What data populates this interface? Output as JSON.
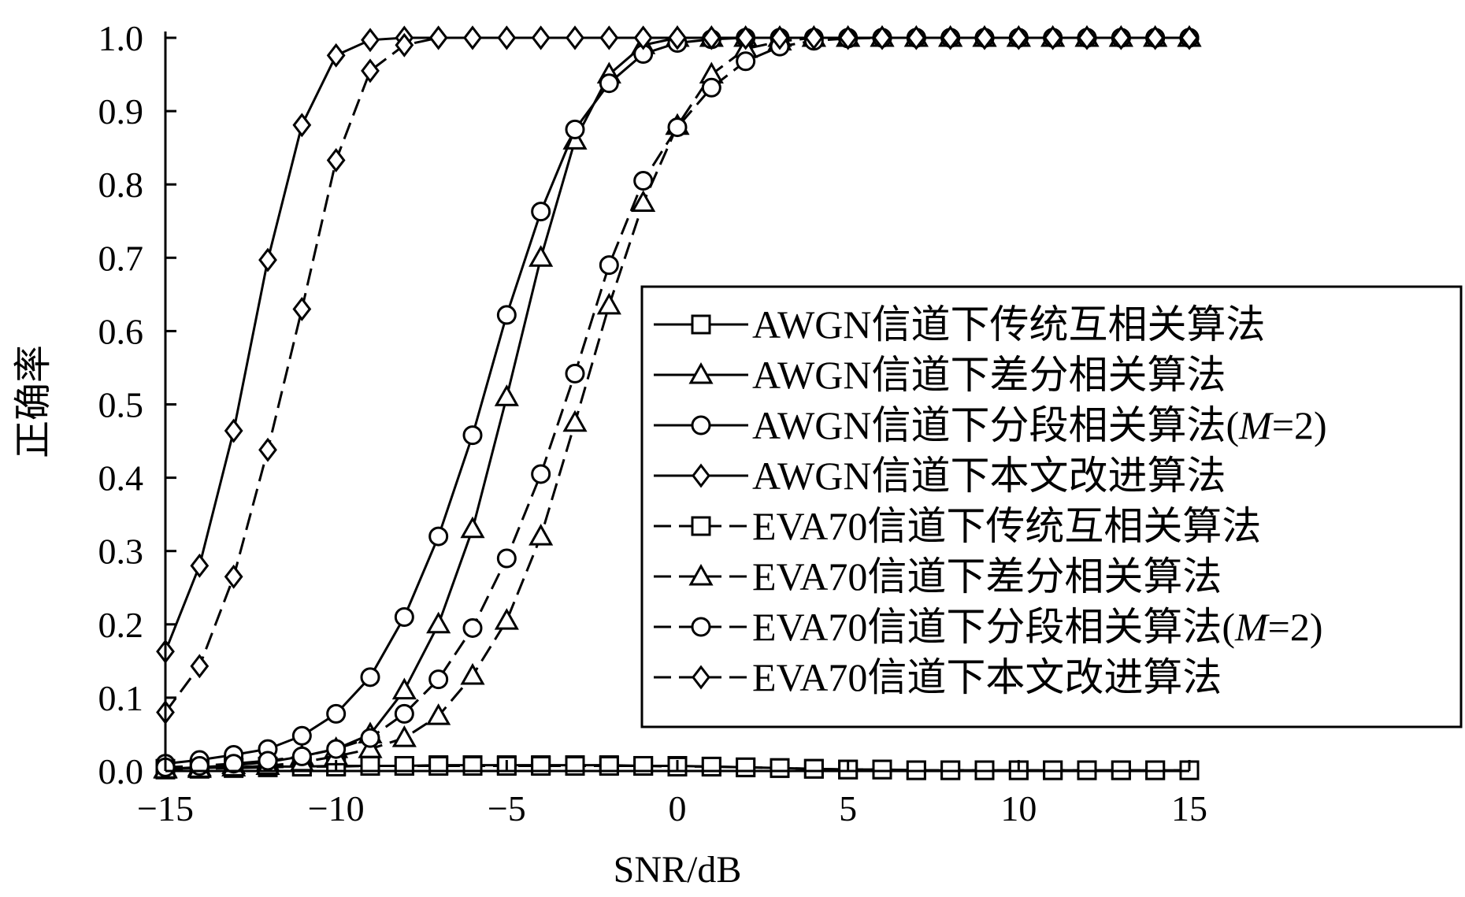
{
  "chart_data": {
    "type": "line",
    "xlabel": "SNR/dB",
    "ylabel": "正确率",
    "xlim": [
      -15,
      15
    ],
    "ylim": [
      0,
      1
    ],
    "x_ticks": [
      -15,
      -10,
      -5,
      0,
      5,
      10,
      15
    ],
    "x_tick_labels": [
      "−15",
      "−10",
      "−5",
      "0",
      "5",
      "10",
      "15"
    ],
    "y_ticks": [
      0,
      0.1,
      0.2,
      0.3,
      0.4,
      0.5,
      0.6,
      0.7,
      0.8,
      0.9,
      1.0
    ],
    "y_tick_labels": [
      "0.0",
      "0.1",
      "0.2",
      "0.3",
      "0.4",
      "0.5",
      "0.6",
      "0.7",
      "0.8",
      "0.9",
      "1.0"
    ],
    "grid": false,
    "legend_position": "right",
    "x": [
      -15,
      -14,
      -13,
      -12,
      -11,
      -10,
      -9,
      -8,
      -7,
      -6,
      -5,
      -4,
      -3,
      -2,
      -1,
      0,
      1,
      2,
      3,
      4,
      5,
      6,
      7,
      8,
      9,
      10,
      11,
      12,
      13,
      14,
      15
    ],
    "series": [
      {
        "name": "AWGN信道下传统互相关算法",
        "legend_main": "AWGN信道下传统互相关算法",
        "legend_italic": "",
        "legend_suffix": "",
        "line_style": "solid",
        "marker": "square",
        "values": [
          0.003,
          0.004,
          0.005,
          0.006,
          0.006,
          0.007,
          0.007,
          0.007,
          0.008,
          0.008,
          0.008,
          0.008,
          0.008,
          0.008,
          0.007,
          0.007,
          0.006,
          0.005,
          0.004,
          0.003,
          0.002,
          0.002,
          0.001,
          0.001,
          0.001,
          0.001,
          0.001,
          0.001,
          0.001,
          0.001,
          0.001
        ]
      },
      {
        "name": "AWGN信道下差分相关算法",
        "legend_main": "AWGN信道下差分相关算法",
        "legend_italic": "",
        "legend_suffix": "",
        "line_style": "solid",
        "marker": "triangle",
        "values": [
          0.003,
          0.005,
          0.008,
          0.012,
          0.02,
          0.03,
          0.05,
          0.11,
          0.2,
          0.33,
          0.51,
          0.7,
          0.86,
          0.95,
          0.99,
          1.0,
          1.0,
          1.0,
          1.0,
          1.0,
          1.0,
          1.0,
          1.0,
          1.0,
          1.0,
          1.0,
          1.0,
          1.0,
          1.0,
          1.0,
          1.0
        ]
      },
      {
        "name": "AWGN信道下分段相关算法(M=2)",
        "legend_main": "AWGN信道下分段相关算法(",
        "legend_italic": "M",
        "legend_suffix": "=2)",
        "line_style": "solid",
        "marker": "circle",
        "values": [
          0.01,
          0.015,
          0.022,
          0.03,
          0.048,
          0.078,
          0.128,
          0.21,
          0.32,
          0.458,
          0.622,
          0.763,
          0.875,
          0.938,
          0.978,
          0.993,
          0.998,
          1.0,
          1.0,
          1.0,
          1.0,
          1.0,
          1.0,
          1.0,
          1.0,
          1.0,
          1.0,
          1.0,
          1.0,
          1.0,
          1.0
        ]
      },
      {
        "name": "AWGN信道下本文改进算法",
        "legend_main": "AWGN信道下本文改进算法",
        "legend_italic": "",
        "legend_suffix": "",
        "line_style": "solid",
        "marker": "diamond",
        "values": [
          0.163,
          0.28,
          0.464,
          0.697,
          0.881,
          0.976,
          0.997,
          1.0,
          1.0,
          1.0,
          1.0,
          1.0,
          1.0,
          1.0,
          1.0,
          1.0,
          1.0,
          1.0,
          1.0,
          1.0,
          1.0,
          1.0,
          1.0,
          1.0,
          1.0,
          1.0,
          1.0,
          1.0,
          1.0,
          1.0,
          1.0
        ]
      },
      {
        "name": "EVA70信道下传统互相关算法",
        "legend_main": "EVA70信道下传统互相关算法",
        "legend_italic": "",
        "legend_suffix": "",
        "line_style": "dashed",
        "marker": "square",
        "values": [
          0.002,
          0.003,
          0.004,
          0.005,
          0.006,
          0.006,
          0.007,
          0.007,
          0.007,
          0.007,
          0.007,
          0.007,
          0.007,
          0.007,
          0.007,
          0.006,
          0.006,
          0.005,
          0.004,
          0.003,
          0.002,
          0.002,
          0.001,
          0.001,
          0.001,
          0.001,
          0.001,
          0.001,
          0.001,
          0.001,
          0.001
        ]
      },
      {
        "name": "EVA70信道下差分相关算法",
        "legend_main": "EVA70信道下差分相关算法",
        "legend_italic": "",
        "legend_suffix": "",
        "line_style": "dashed",
        "marker": "triangle",
        "values": [
          0.002,
          0.003,
          0.005,
          0.007,
          0.012,
          0.02,
          0.03,
          0.045,
          0.075,
          0.13,
          0.205,
          0.32,
          0.475,
          0.635,
          0.775,
          0.88,
          0.95,
          0.985,
          0.995,
          1.0,
          1.0,
          1.0,
          1.0,
          1.0,
          1.0,
          1.0,
          1.0,
          1.0,
          1.0,
          1.0,
          1.0
        ]
      },
      {
        "name": "EVA70信道下分段相关算法(M=2)",
        "legend_main": "EVA70信道下分段相关算法(",
        "legend_italic": "M",
        "legend_suffix": "=2)",
        "line_style": "dashed",
        "marker": "circle",
        "values": [
          0.005,
          0.007,
          0.01,
          0.014,
          0.02,
          0.03,
          0.045,
          0.078,
          0.125,
          0.195,
          0.29,
          0.405,
          0.542,
          0.69,
          0.805,
          0.878,
          0.932,
          0.968,
          0.988,
          0.996,
          0.999,
          1.0,
          1.0,
          1.0,
          1.0,
          1.0,
          1.0,
          1.0,
          1.0,
          1.0,
          1.0
        ]
      },
      {
        "name": "EVA70信道下本文改进算法",
        "legend_main": "EVA70信道下本文改进算法",
        "legend_italic": "",
        "legend_suffix": "",
        "line_style": "dashed",
        "marker": "diamond",
        "values": [
          0.08,
          0.143,
          0.265,
          0.438,
          0.63,
          0.833,
          0.955,
          0.99,
          1.0,
          1.0,
          1.0,
          1.0,
          1.0,
          1.0,
          1.0,
          1.0,
          1.0,
          1.0,
          1.0,
          1.0,
          1.0,
          1.0,
          1.0,
          1.0,
          1.0,
          1.0,
          1.0,
          1.0,
          1.0,
          1.0,
          1.0
        ]
      }
    ]
  }
}
